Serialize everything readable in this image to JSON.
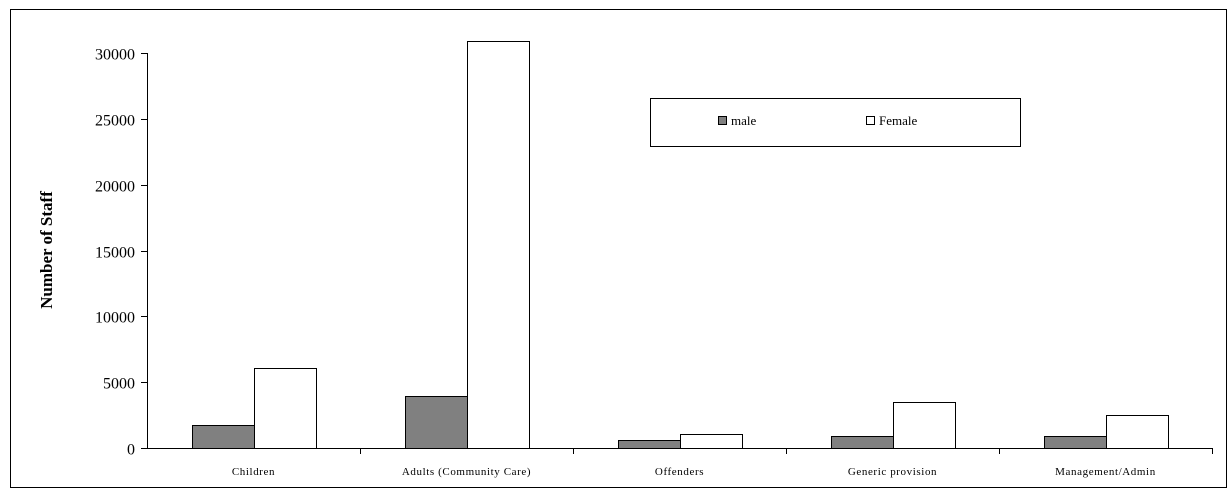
{
  "chart_data": {
    "type": "bar",
    "categories": [
      "Children",
      "Adults (Community Care)",
      "Offenders",
      "Generic provision",
      "Management/Admin"
    ],
    "series": [
      {
        "name": "male",
        "values": [
          1750,
          3950,
          600,
          900,
          900
        ],
        "color": "#808080"
      },
      {
        "name": "Female",
        "values": [
          6100,
          30900,
          1050,
          3500,
          2500
        ],
        "color": "#ffffff"
      }
    ],
    "ylabel": "Number of Staff",
    "ylim": [
      0,
      30000
    ],
    "yticks": [
      0,
      5000,
      10000,
      15000,
      20000,
      25000,
      30000
    ],
    "grid": false,
    "legend_position": "top-right"
  }
}
